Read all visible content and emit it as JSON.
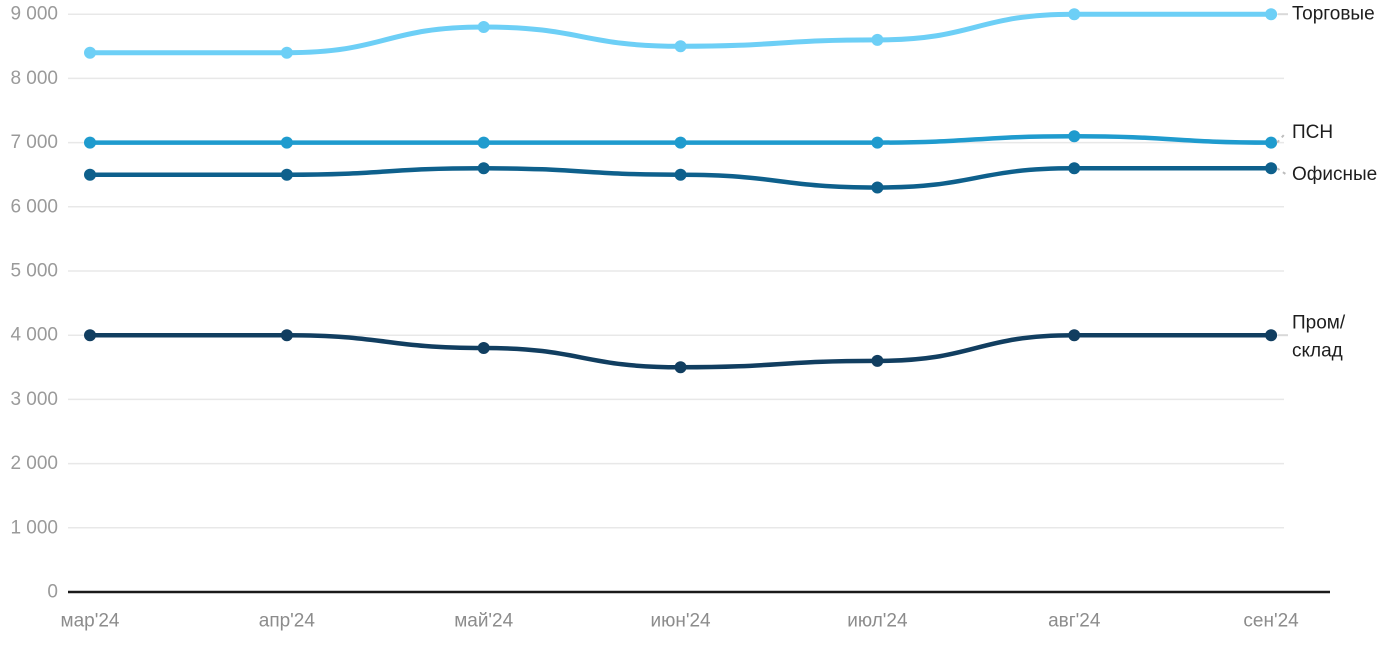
{
  "chart_data": {
    "type": "line",
    "title": "",
    "xlabel": "",
    "ylabel": "",
    "x_categories": [
      "мар'24",
      "апр'24",
      "май'24",
      "июн'24",
      "июл'24",
      "авг'24",
      "сен'24"
    ],
    "y_ticks": [
      "0",
      "1 000",
      "2 000",
      "3 000",
      "4 000",
      "5 000",
      "6 000",
      "7 000",
      "8 000",
      "9 000"
    ],
    "ylim": [
      0,
      9000
    ],
    "grid": true,
    "legend_position": "right-end-of-line",
    "axis_color": "#1a1a1a",
    "grid_color": "#e8e8e8",
    "tick_label_color": "#9a9a9a",
    "series": [
      {
        "key": "torgovye",
        "name": "Торговые",
        "label_lines": [
          "Торговые"
        ],
        "color": "#6dcff6",
        "values": [
          8400,
          8400,
          8800,
          8500,
          8600,
          9000,
          9000
        ]
      },
      {
        "key": "psn",
        "name": "ПСН",
        "label_lines": [
          "ПСН"
        ],
        "color": "#1f9bce",
        "values": [
          7000,
          7000,
          7000,
          7000,
          7000,
          7100,
          7000
        ]
      },
      {
        "key": "ofisnye",
        "name": "Офисные",
        "label_lines": [
          "Офисные"
        ],
        "color": "#0e608c",
        "values": [
          6500,
          6500,
          6600,
          6500,
          6300,
          6600,
          6600
        ]
      },
      {
        "key": "prom-sklad",
        "name": "Пром/склад",
        "label_lines": [
          "Пром/",
          "склад"
        ],
        "color": "#113e60",
        "values": [
          4000,
          4000,
          3800,
          3500,
          3600,
          4000,
          4000
        ]
      }
    ]
  }
}
